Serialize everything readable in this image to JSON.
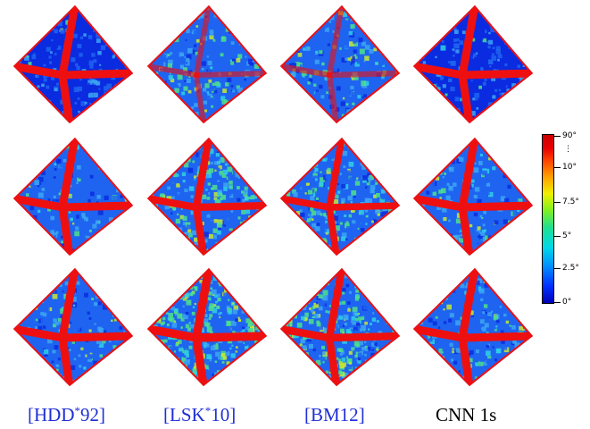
{
  "columns": [
    {
      "label": "[HDD",
      "sup": "*",
      "after": "92]",
      "style": "cite"
    },
    {
      "label": "[LSK",
      "sup": "*",
      "after": "10]",
      "style": "cite"
    },
    {
      "label": "[BM12",
      "sup": "",
      "after": "]",
      "style": "cite"
    },
    {
      "label": "CNN 1s",
      "sup": "",
      "after": "",
      "style": "plain"
    }
  ],
  "colorbar": {
    "ticks": [
      "90°",
      "10°",
      "7.5°",
      "5°",
      "2.5°",
      "0°"
    ],
    "dots": "⋮"
  },
  "colors": {
    "deep_blue": "#0a2be0",
    "blue": "#1e64f0",
    "light_blue": "#3ca6f2",
    "cyan": "#30d0e6",
    "green": "#4fe08a",
    "yellow": "#c8e830",
    "edge_red": "#ee1010"
  },
  "panels": [
    {
      "row": 1,
      "col": 1,
      "noise_level": 0.05
    },
    {
      "row": 1,
      "col": 2,
      "noise_level": 0.35
    },
    {
      "row": 1,
      "col": 3,
      "noise_level": 0.4
    },
    {
      "row": 1,
      "col": 4,
      "noise_level": 0.08
    },
    {
      "row": 2,
      "col": 1,
      "noise_level": 0.25
    },
    {
      "row": 2,
      "col": 2,
      "noise_level": 0.7
    },
    {
      "row": 2,
      "col": 3,
      "noise_level": 0.6
    },
    {
      "row": 2,
      "col": 4,
      "noise_level": 0.3
    },
    {
      "row": 3,
      "col": 1,
      "noise_level": 0.3
    },
    {
      "row": 3,
      "col": 2,
      "noise_level": 0.9
    },
    {
      "row": 3,
      "col": 3,
      "noise_level": 0.75
    },
    {
      "row": 3,
      "col": 4,
      "noise_level": 0.35
    }
  ]
}
